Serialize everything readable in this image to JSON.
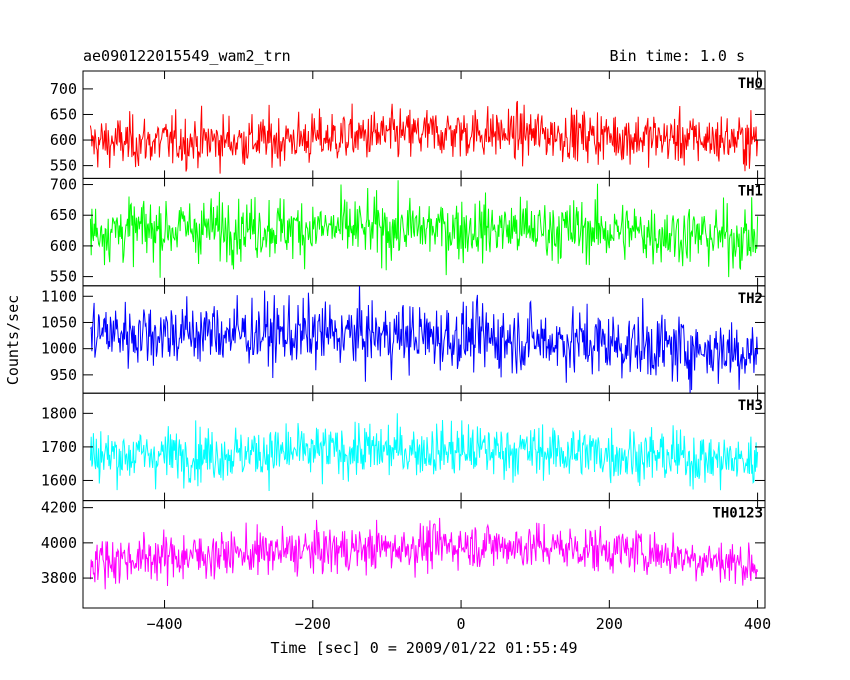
{
  "header": {
    "left_title": "ae090122015549_wam2_trn",
    "right_title": "Bin time: 1.0 s"
  },
  "chart_data": {
    "type": "line",
    "title": "ae090122015549_wam2_trn",
    "subtitle": "Bin time: 1.0 s",
    "xlabel": "Time [sec] 0 = 2009/01/22 01:55:49",
    "ylabel": "Counts/sec",
    "xlim": [
      -510,
      410
    ],
    "x_ticks": [
      -400,
      -200,
      0,
      200,
      400
    ],
    "x_tick_labels": [
      "−400",
      "−200",
      "0",
      "200",
      "400"
    ],
    "x_range": [
      -500,
      400
    ],
    "bin_time": 1.0,
    "grid": false,
    "legend": "none",
    "panels": [
      {
        "name": "TH0",
        "color": "#ff0000",
        "ylim": [
          525,
          735
        ],
        "y_ticks": [
          550,
          600,
          650,
          700
        ],
        "baseline": [
          [
            -500,
            595
          ],
          [
            -250,
            600
          ],
          [
            -100,
            610
          ],
          [
            0,
            615
          ],
          [
            150,
            610
          ],
          [
            300,
            602
          ],
          [
            400,
            600
          ]
        ],
        "noise_sd": 25
      },
      {
        "name": "TH1",
        "color": "#00ff00",
        "ylim": [
          535,
          710
        ],
        "y_ticks": [
          550,
          600,
          650,
          700
        ],
        "baseline": [
          [
            -500,
            625
          ],
          [
            -300,
            630
          ],
          [
            -100,
            628
          ],
          [
            50,
            628
          ],
          [
            200,
            625
          ],
          [
            400,
            612
          ]
        ],
        "noise_sd": 25
      },
      {
        "name": "TH2",
        "color": "#0000ff",
        "ylim": [
          915,
          1120
        ],
        "y_ticks": [
          950,
          1000,
          1050,
          1100
        ],
        "baseline": [
          [
            -500,
            1030
          ],
          [
            -300,
            1030
          ],
          [
            -100,
            1025
          ],
          [
            50,
            1020
          ],
          [
            200,
            1010
          ],
          [
            300,
            1000
          ],
          [
            400,
            995
          ]
        ],
        "noise_sd": 32
      },
      {
        "name": "TH3",
        "color": "#00ffff",
        "ylim": [
          1540,
          1860
        ],
        "y_ticks": [
          1600,
          1700,
          1800
        ],
        "baseline": [
          [
            -500,
            1675
          ],
          [
            -300,
            1680
          ],
          [
            -100,
            1690
          ],
          [
            50,
            1690
          ],
          [
            200,
            1680
          ],
          [
            300,
            1668
          ],
          [
            400,
            1655
          ]
        ],
        "noise_sd": 40
      },
      {
        "name": "TH0123",
        "color": "#ff00ff",
        "ylim": [
          3630,
          4240
        ],
        "y_ticks": [
          3800,
          4000,
          4200
        ],
        "baseline": [
          [
            -500,
            3900
          ],
          [
            -300,
            3940
          ],
          [
            -100,
            3970
          ],
          [
            0,
            3990
          ],
          [
            100,
            3980
          ],
          [
            250,
            3950
          ],
          [
            400,
            3870
          ]
        ],
        "noise_sd": 65
      }
    ]
  }
}
